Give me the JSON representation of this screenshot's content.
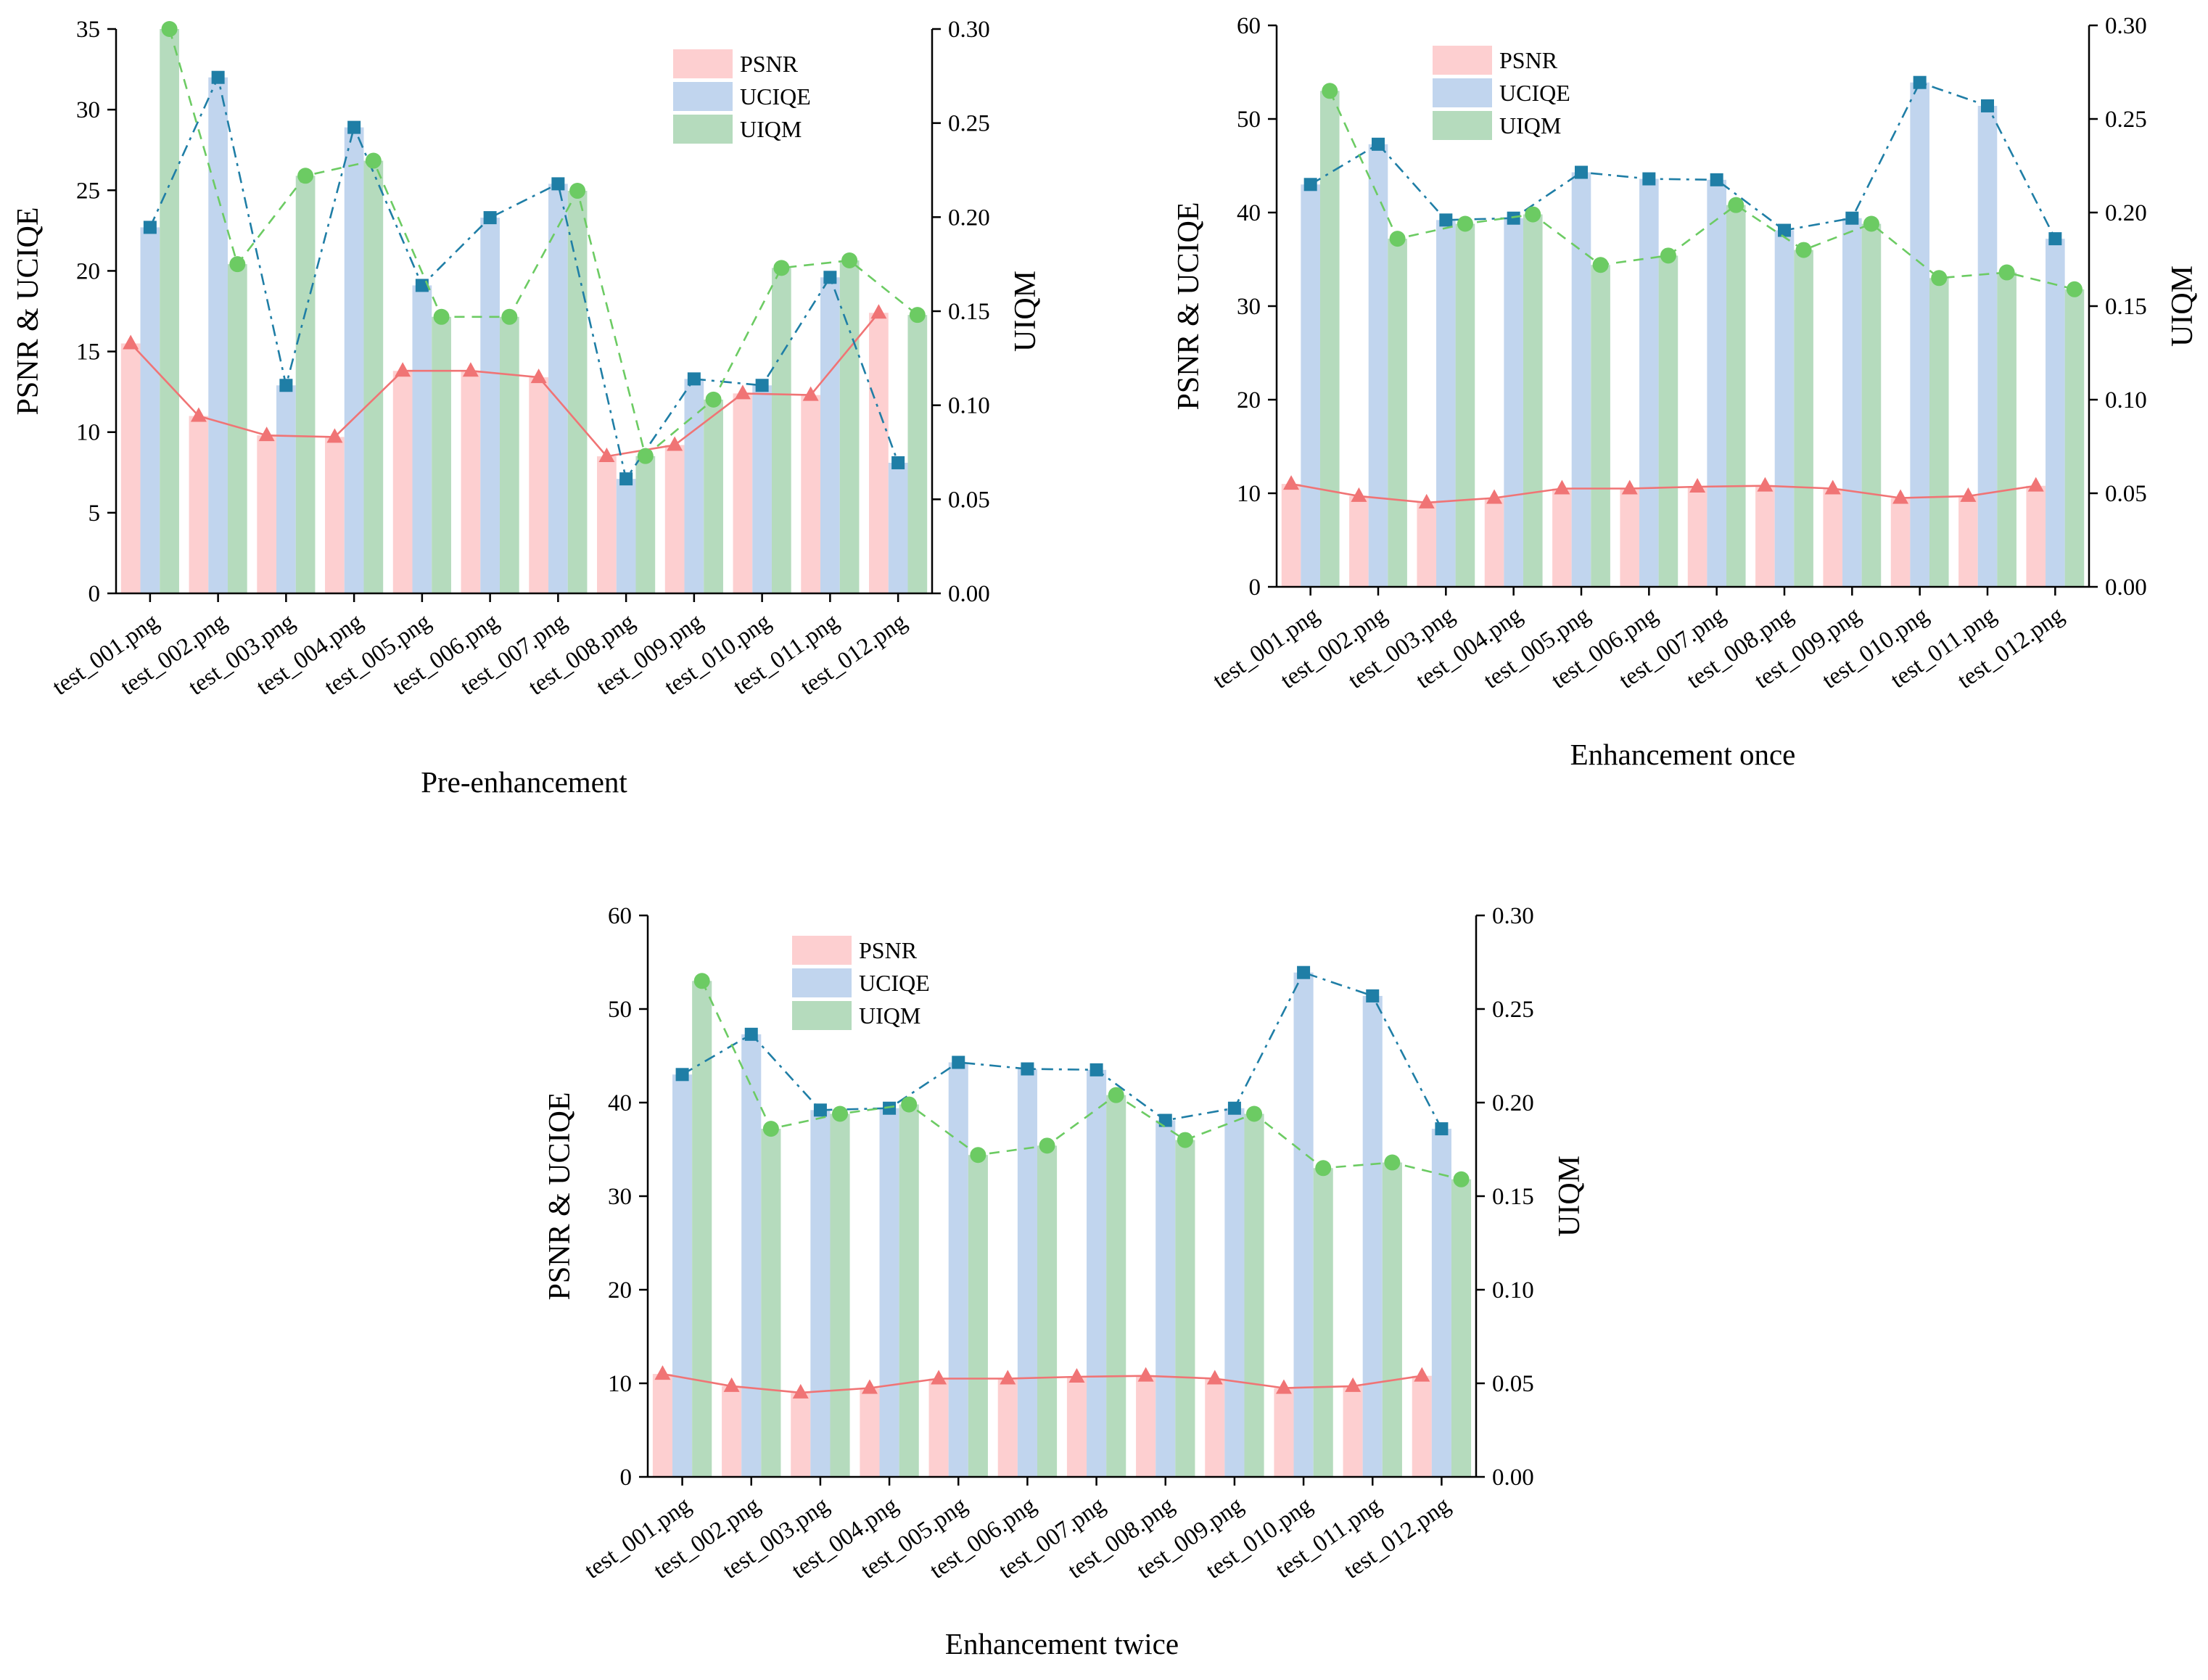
{
  "colors": {
    "psnr_bar": "#fdcfd0",
    "ucique_bar": "#c1d5ee",
    "uiqm_bar": "#b5dbbd",
    "psnr_line": "#f07475",
    "ucique_line": "#1f7ea6",
    "uiqm_line": "#6ccb63"
  },
  "chart_data": [
    {
      "type": "bar",
      "xlabel": "Pre-enhancement",
      "ylabel_left": "PSNR & UCIQE",
      "ylabel_right": "UIQM",
      "ylim_left": [
        0,
        35
      ],
      "yticks_left": [
        "0",
        "5",
        "10",
        "15",
        "20",
        "25",
        "30",
        "35"
      ],
      "ylim_right": [
        0,
        0.3
      ],
      "yticks_right": [
        "0.00",
        "0.05",
        "0.10",
        "0.15",
        "0.20",
        "0.25",
        "0.30"
      ],
      "legend": [
        "PSNR",
        "UCIQE",
        "UIQM"
      ],
      "legend_position": "top-right",
      "categories": [
        "test_001.png",
        "test_002.png",
        "test_003.png",
        "test_004.png",
        "test_005.png",
        "test_006.png",
        "test_007.png",
        "test_008.png",
        "test_009.png",
        "test_010.png",
        "test_011.png",
        "test_012.png"
      ],
      "series": [
        {
          "name": "PSNR",
          "axis": "left",
          "values": [
            15.5,
            11.0,
            9.8,
            9.7,
            13.8,
            13.8,
            13.4,
            8.5,
            9.2,
            12.4,
            12.3,
            17.4
          ]
        },
        {
          "name": "UCIQE",
          "axis": "left",
          "values": [
            22.7,
            32.0,
            12.9,
            28.9,
            19.1,
            23.3,
            25.4,
            7.1,
            13.3,
            12.9,
            19.6,
            8.1
          ]
        },
        {
          "name": "UIQM",
          "axis": "right",
          "values": [
            0.3,
            0.175,
            0.222,
            0.23,
            0.147,
            0.147,
            0.214,
            0.073,
            0.103,
            0.173,
            0.177,
            0.148
          ]
        }
      ]
    },
    {
      "type": "bar",
      "xlabel": "Enhancement once",
      "ylabel_left": "PSNR & UCIQE",
      "ylabel_right": "UIQM",
      "ylim_left": [
        0,
        60
      ],
      "yticks_left": [
        "0",
        "10",
        "20",
        "30",
        "40",
        "50",
        "60"
      ],
      "ylim_right": [
        0,
        0.3
      ],
      "yticks_right": [
        "0.00",
        "0.05",
        "0.10",
        "0.15",
        "0.20",
        "0.25",
        "0.30"
      ],
      "legend": [
        "PSNR",
        "UCIQE",
        "UIQM"
      ],
      "legend_position": "top-left",
      "categories": [
        "test_001.png",
        "test_002.png",
        "test_003.png",
        "test_004.png",
        "test_005.png",
        "test_006.png",
        "test_007.png",
        "test_008.png",
        "test_009.png",
        "test_010.png",
        "test_011.png",
        "test_012.png"
      ],
      "series": [
        {
          "name": "PSNR",
          "axis": "left",
          "values": [
            11.0,
            9.7,
            9.0,
            9.5,
            10.5,
            10.5,
            10.7,
            10.8,
            10.5,
            9.5,
            9.7,
            10.8
          ]
        },
        {
          "name": "UCIQE",
          "axis": "left",
          "values": [
            43.0,
            47.3,
            39.2,
            39.4,
            44.3,
            43.6,
            43.5,
            38.1,
            39.4,
            53.9,
            51.4,
            37.2
          ]
        },
        {
          "name": "UIQM",
          "axis": "right",
          "values": [
            0.265,
            0.186,
            0.194,
            0.199,
            0.172,
            0.177,
            0.204,
            0.18,
            0.194,
            0.165,
            0.168,
            0.159
          ]
        }
      ]
    },
    {
      "type": "bar",
      "xlabel": "Enhancement twice",
      "ylabel_left": "PSNR & UCIQE",
      "ylabel_right": "UIQM",
      "ylim_left": [
        0,
        60
      ],
      "yticks_left": [
        "0",
        "10",
        "20",
        "30",
        "40",
        "50",
        "60"
      ],
      "ylim_right": [
        0,
        0.3
      ],
      "yticks_right": [
        "0.00",
        "0.05",
        "0.10",
        "0.15",
        "0.20",
        "0.25",
        "0.30"
      ],
      "legend": [
        "PSNR",
        "UCIQE",
        "UIQM"
      ],
      "legend_position": "top-left",
      "categories": [
        "test_001.png",
        "test_002.png",
        "test_003.png",
        "test_004.png",
        "test_005.png",
        "test_006.png",
        "test_007.png",
        "test_008.png",
        "test_009.png",
        "test_010.png",
        "test_011.png",
        "test_012.png"
      ],
      "series": [
        {
          "name": "PSNR",
          "axis": "left",
          "values": [
            11.0,
            9.7,
            9.0,
            9.5,
            10.5,
            10.5,
            10.7,
            10.8,
            10.5,
            9.5,
            9.7,
            10.8
          ]
        },
        {
          "name": "UCIQE",
          "axis": "left",
          "values": [
            43.0,
            47.3,
            39.2,
            39.4,
            44.3,
            43.6,
            43.5,
            38.1,
            39.4,
            53.9,
            51.4,
            37.2
          ]
        },
        {
          "name": "UIQM",
          "axis": "right",
          "values": [
            0.265,
            0.186,
            0.194,
            0.199,
            0.172,
            0.177,
            0.204,
            0.18,
            0.194,
            0.165,
            0.168,
            0.159
          ]
        }
      ]
    }
  ]
}
